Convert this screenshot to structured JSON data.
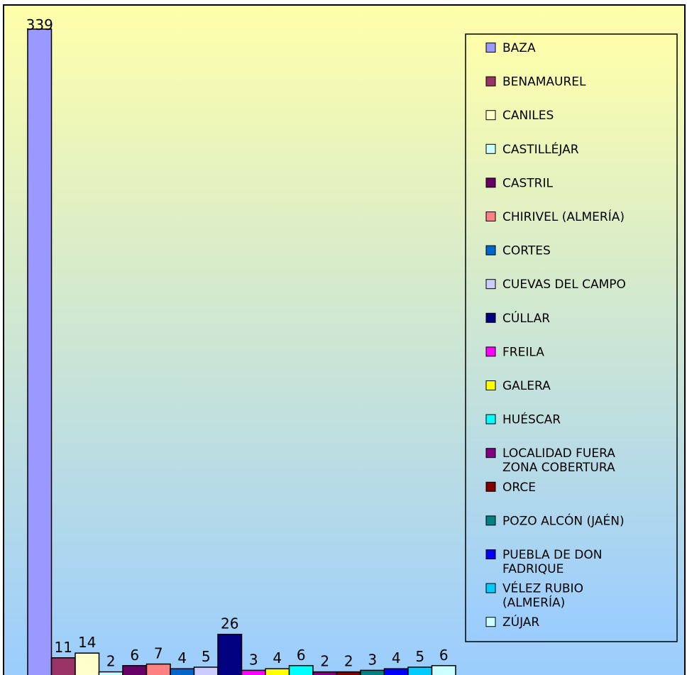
{
  "chart_data": {
    "type": "bar",
    "categories": [
      "BAZA",
      "BENAMAUREL",
      "CANILES",
      "CASTILLÉJAR",
      "CASTRIL",
      "CHIRIVEL (ALMERÍA)",
      "CORTES",
      "CUEVAS DEL CAMPO",
      "CÚLLAR",
      "FREILA",
      "GALERA",
      "HUÉSCAR",
      "LOCALIDAD FUERA ZONA COBERTURA",
      "ORCE",
      "POZO ALCÓN (JAÉN)",
      "PUEBLA DE DON FADRIQUE",
      "VÉLEZ RUBIO (ALMERÍA)",
      "ZÚJAR"
    ],
    "legend_lines": [
      [
        "BAZA"
      ],
      [
        "BENAMAUREL"
      ],
      [
        "CANILES"
      ],
      [
        "CASTILLÉJAR"
      ],
      [
        "CASTRIL"
      ],
      [
        "CHIRIVEL (ALMERÍA)"
      ],
      [
        "CORTES"
      ],
      [
        "CUEVAS DEL CAMPO"
      ],
      [
        "CÚLLAR"
      ],
      [
        "FREILA"
      ],
      [
        "GALERA"
      ],
      [
        "HUÉSCAR"
      ],
      [
        "LOCALIDAD FUERA",
        "ZONA COBERTURA"
      ],
      [
        "ORCE"
      ],
      [
        "POZO ALCÓN (JAÉN)"
      ],
      [
        "PUEBLA DE DON",
        "FADRIQUE"
      ],
      [
        "VÉLEZ RUBIO",
        "(ALMERÍA)"
      ],
      [
        "ZÚJAR"
      ]
    ],
    "values": [
      339,
      11,
      14,
      2,
      6,
      7,
      4,
      5,
      26,
      3,
      4,
      6,
      2,
      2,
      3,
      4,
      5,
      6
    ],
    "value_labels": [
      "339",
      "11",
      "14",
      "2",
      "6",
      "7",
      "4",
      "5",
      "26",
      "3",
      "4",
      "6",
      "2",
      "2",
      "3",
      "4",
      "5",
      "6"
    ],
    "colors": [
      "#9999FF",
      "#993366",
      "#FFFFCC",
      "#CCFFFF",
      "#660066",
      "#FF8080",
      "#0066CC",
      "#CCCCFF",
      "#000080",
      "#FF00FF",
      "#FFFF00",
      "#00FFFF",
      "#800080",
      "#800000",
      "#008080",
      "#0000FF",
      "#00CCFF",
      "#CCFFFF"
    ],
    "legend_position": "right",
    "background_gradient": [
      "#FFFFAA",
      "#99CCFF"
    ],
    "grid": false,
    "title": "",
    "xlabel": "",
    "ylabel": ""
  }
}
